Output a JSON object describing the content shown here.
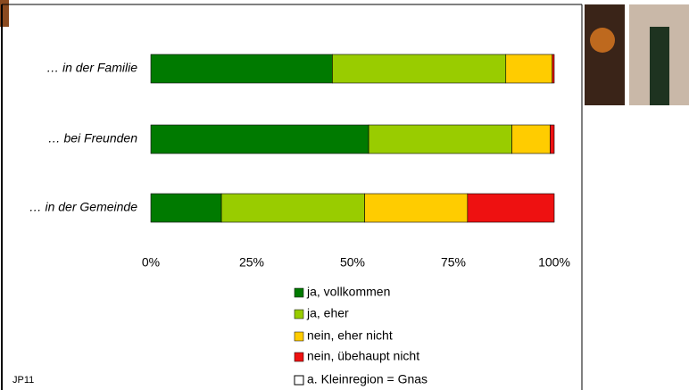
{
  "chart_data": {
    "type": "stacked-barh",
    "categories": [
      "… in der Familie",
      "… bei Freunden",
      "… in der Gemeinde"
    ],
    "series": [
      {
        "name": "ja, vollkommen",
        "color": "#007a00",
        "values": [
          45,
          54,
          17.5
        ]
      },
      {
        "name": "ja, eher",
        "color": "#99cc00",
        "values": [
          43,
          35.5,
          35.5
        ]
      },
      {
        "name": "nein, eher nicht",
        "color": "#ffcc00",
        "values": [
          11.5,
          9.5,
          25.5
        ]
      },
      {
        "name": "nein, übehaupt nicht",
        "color": "#ee1111",
        "values": [
          0.5,
          1,
          21.5
        ]
      }
    ],
    "xlim": [
      0,
      100
    ],
    "xticks": [
      {
        "value": 0,
        "label": "0%"
      },
      {
        "value": 25,
        "label": "25%"
      },
      {
        "value": 50,
        "label": "50%"
      },
      {
        "value": 75,
        "label": "75%"
      },
      {
        "value": 100,
        "label": "100%"
      }
    ],
    "note": "a. Kleinregion = Gnas",
    "code": "JP11"
  }
}
